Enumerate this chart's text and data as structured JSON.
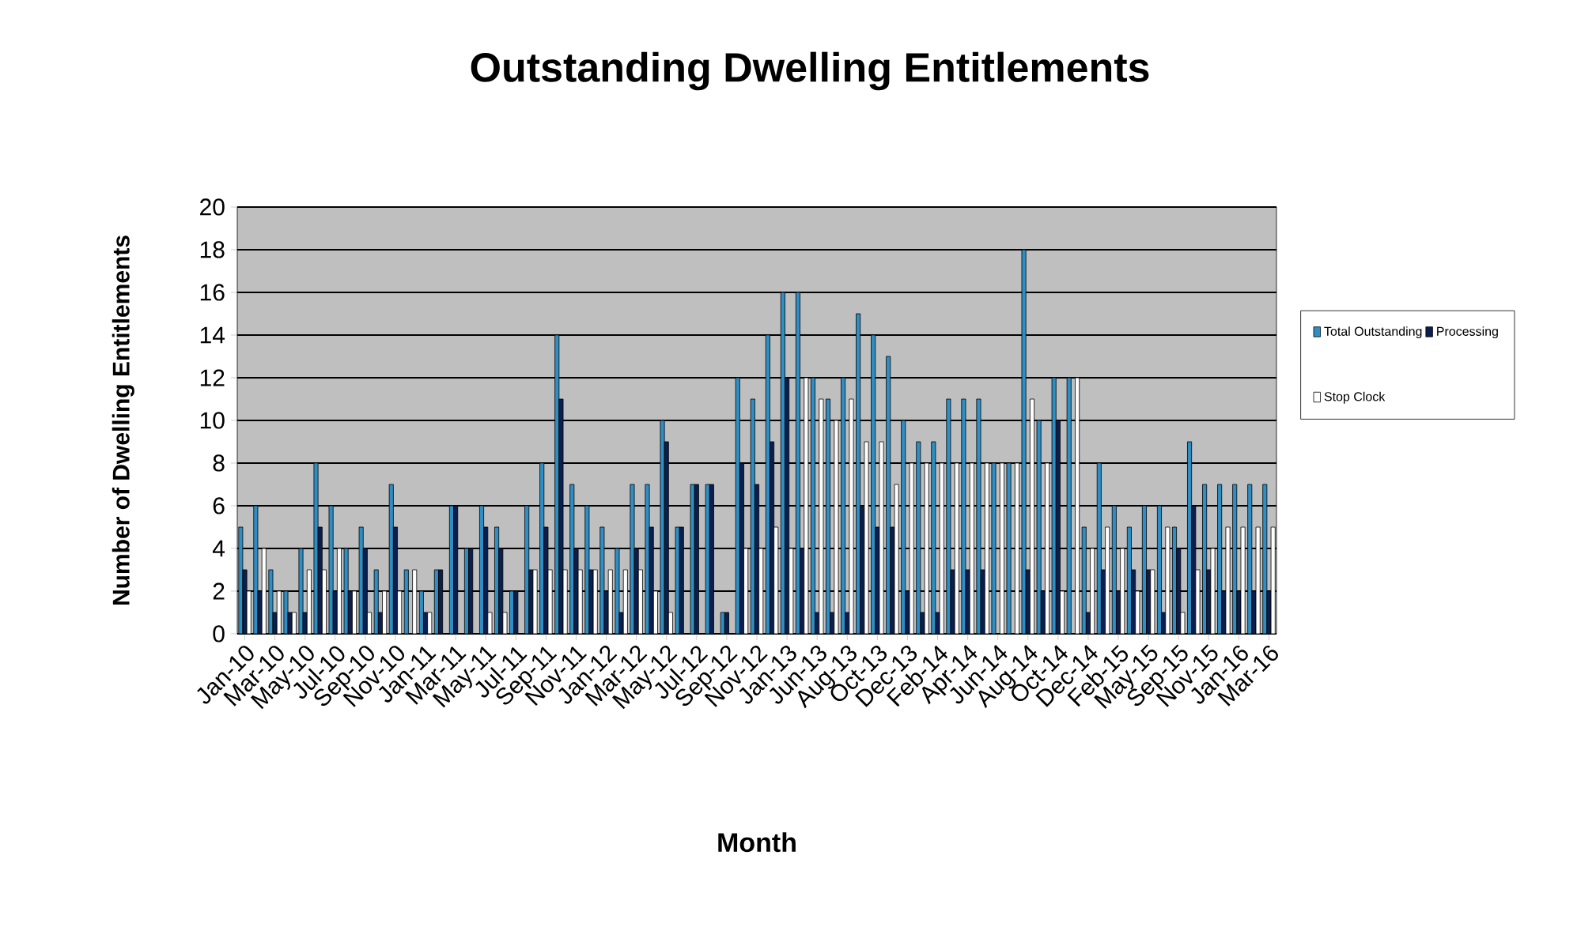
{
  "chart_data": {
    "type": "bar",
    "title": "Outstanding Dwelling Entitlements",
    "xlabel": "Month",
    "ylabel": "Number of Dwelling Entitlements",
    "categories": [
      "Jan-10",
      null,
      "Mar-10",
      null,
      "May-10",
      null,
      "Jul-10",
      null,
      "Sep-10",
      null,
      "Nov-10",
      null,
      "Jan-11",
      null,
      "Mar-11",
      null,
      "May-11",
      null,
      "Jul-11",
      null,
      "Sep-11",
      null,
      "Nov-11",
      null,
      "Jan-12",
      null,
      "Mar-12",
      null,
      "May-12",
      null,
      "Jul-12",
      null,
      "Sep-12",
      null,
      "Nov-12",
      null,
      "Jan-13",
      null,
      "Jun-13",
      null,
      "Aug-13",
      null,
      "Oct-13",
      null,
      "Dec-13",
      null,
      "Feb-14",
      null,
      "Apr-14",
      null,
      "Jun-14",
      null,
      "Aug-14",
      null,
      "Oct-14",
      null,
      "Dec-14",
      null,
      "Feb-15",
      null,
      "May-15",
      null,
      "Sep-15",
      null,
      "Nov-15",
      null,
      "Jan-16",
      null,
      "Mar-16"
    ],
    "series": [
      {
        "name": "Total Outstanding",
        "color": "#2f8fc4",
        "values": [
          5,
          6,
          3,
          2,
          4,
          8,
          6,
          4,
          5,
          3,
          7,
          3,
          2,
          3,
          6,
          4,
          6,
          5,
          2,
          6,
          8,
          14,
          7,
          6,
          5,
          4,
          7,
          7,
          10,
          5,
          7,
          7,
          1,
          12,
          11,
          14,
          16,
          16,
          12,
          11,
          12,
          15,
          14,
          13,
          10,
          9,
          9,
          11,
          11,
          11,
          8,
          8,
          18,
          10,
          12,
          12,
          5,
          8,
          6,
          5,
          6,
          6,
          5,
          9,
          7,
          7,
          7,
          7,
          7
        ]
      },
      {
        "name": "Processing",
        "color": "#0b1f4f",
        "values": [
          3,
          2,
          1,
          1,
          1,
          5,
          2,
          2,
          4,
          1,
          5,
          0,
          1,
          3,
          6,
          4,
          5,
          4,
          2,
          3,
          5,
          11,
          4,
          3,
          2,
          1,
          4,
          5,
          9,
          5,
          7,
          7,
          1,
          8,
          7,
          9,
          12,
          4,
          1,
          1,
          1,
          6,
          5,
          5,
          2,
          1,
          1,
          3,
          3,
          3,
          0,
          0,
          3,
          2,
          10,
          0,
          1,
          3,
          2,
          3,
          3,
          1,
          4,
          6,
          3,
          2,
          2,
          2,
          2
        ]
      },
      {
        "name": "Stop Clock",
        "color": "#ffffff",
        "values": [
          2,
          4,
          2,
          1,
          3,
          3,
          4,
          2,
          1,
          2,
          2,
          3,
          1,
          0,
          0,
          0,
          1,
          1,
          0,
          3,
          3,
          3,
          3,
          3,
          3,
          3,
          3,
          2,
          1,
          0,
          0,
          0,
          0,
          4,
          4,
          5,
          4,
          12,
          11,
          10,
          11,
          9,
          9,
          7,
          8,
          8,
          8,
          8,
          8,
          8,
          8,
          8,
          11,
          8,
          2,
          12,
          4,
          5,
          4,
          2,
          3,
          5,
          1,
          3,
          4,
          5,
          5,
          5,
          5
        ]
      }
    ],
    "ylim": [
      0,
      20
    ],
    "yticks": [
      0,
      2,
      4,
      6,
      8,
      10,
      12,
      14,
      16,
      18,
      20
    ],
    "grid": "y",
    "legend": "right"
  }
}
